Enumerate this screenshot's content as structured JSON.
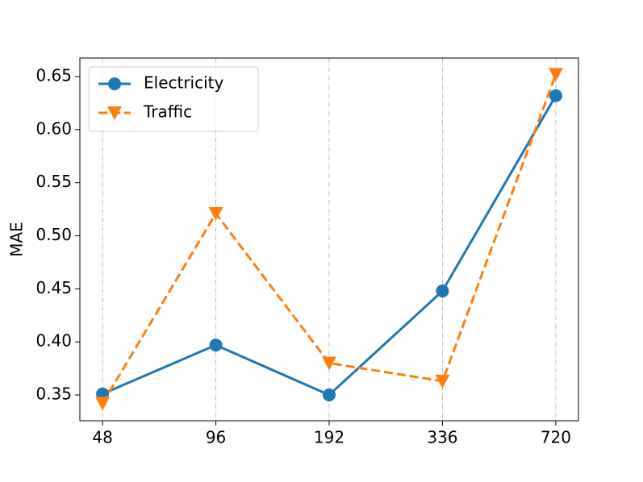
{
  "chart_data": {
    "type": "line",
    "y_label": "MAE",
    "categories": [
      "48",
      "96",
      "192",
      "336",
      "720"
    ],
    "series": [
      {
        "name": "Electricity",
        "color": "#1f77b4",
        "marker": "circle",
        "linestyle": "solid",
        "values": [
          0.351,
          0.397,
          0.35,
          0.448,
          0.632
        ]
      },
      {
        "name": "Traffic",
        "color": "#ff7f0e",
        "marker": "triangle-down",
        "linestyle": "dashed",
        "values": [
          0.342,
          0.521,
          0.38,
          0.363,
          0.652
        ]
      }
    ],
    "ylim": [
      0.3257,
      0.6675
    ],
    "yticks": [
      0.35,
      {
        "value": 0.4,
        "label": "0.40"
      },
      0.45,
      {
        "value": 0.5,
        "label": "0.50"
      },
      0.55,
      {
        "value": 0.6,
        "label": "0.60"
      },
      0.65
    ],
    "grid": "x",
    "legend": "upper-left"
  }
}
